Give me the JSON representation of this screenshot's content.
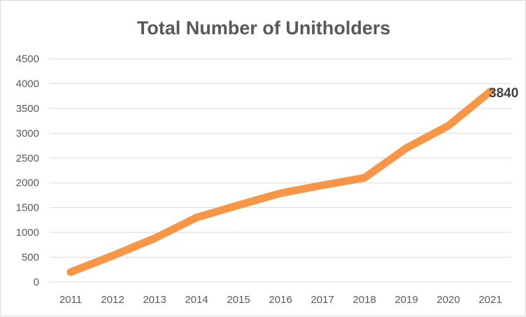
{
  "chart_data": {
    "type": "line",
    "title": "Total Number of Unitholders",
    "xlabel": "",
    "ylabel": "",
    "categories": [
      "2011",
      "2012",
      "2013",
      "2014",
      "2015",
      "2016",
      "2017",
      "2018",
      "2019",
      "2020",
      "2021"
    ],
    "series": [
      {
        "values": [
          200,
          530,
          880,
          1300,
          1550,
          1790,
          1950,
          2100,
          2700,
          3150,
          3840
        ],
        "color": "#f79646"
      }
    ],
    "ylim": [
      0,
      4500
    ],
    "yticks": [
      "0",
      "500",
      "1000",
      "1500",
      "2000",
      "2500",
      "3000",
      "3500",
      "4000",
      "4500"
    ],
    "grid": true,
    "legend": "none",
    "data_labels": [
      {
        "index": 10,
        "text": "3840"
      }
    ],
    "colors": {
      "line": "#f79646",
      "grid": "#d9d9d9",
      "text": "#595959"
    }
  }
}
